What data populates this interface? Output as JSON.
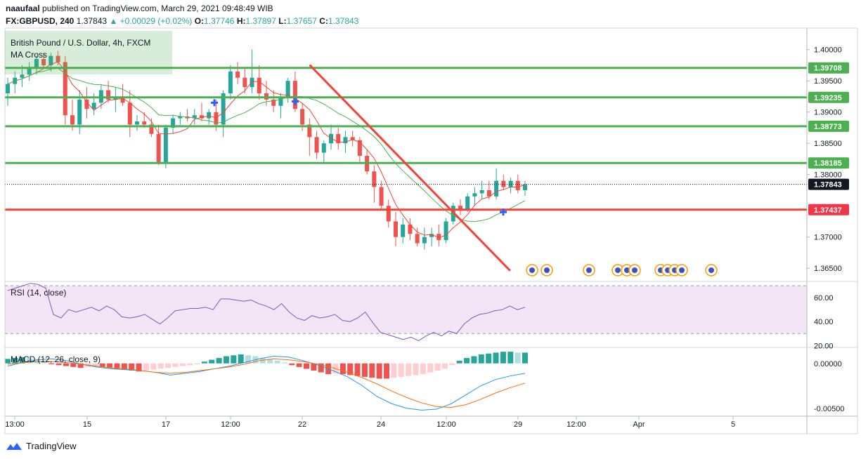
{
  "header": {
    "author": "naaufaal",
    "published": "published on TradingView.com, March 29, 2021 09:48:49 WIB",
    "symbol": "FX:GBPUSD, 240",
    "last": "1.37843",
    "change": "▲ +0.00029 (+0.02%)",
    "o_label": "O:",
    "o": "1.37746",
    "h_label": "H:",
    "h": "1.37897",
    "l_label": "L:",
    "l": "1.37657",
    "c_label": "C:",
    "c": "1.37843"
  },
  "footer": {
    "brand": "TradingView"
  },
  "colors": {
    "up": "#26a69a",
    "down": "#ef5350",
    "support": "#4caf50",
    "resistance": "#f44336",
    "ma_fast": "#f44336",
    "ma_slow": "#4caf50",
    "rsi": "#7e57c2",
    "rsi_band": "#f3e5f5",
    "macd": "#2196f3",
    "signal": "#ff6d00",
    "label_green": "#4caf50",
    "label_red": "#f23645",
    "price_label": "#131722"
  },
  "chart_data": [
    {
      "type": "candlestick",
      "title": "British Pound / U.S. Dollar, 4h, FXCM",
      "indicator": "MA Cross",
      "ylim": [
        1.363,
        1.403
      ],
      "y_ticks": [
        "1.40000",
        "1.39500",
        "1.39000",
        "1.38500",
        "1.38000",
        "1.37000",
        "1.36500"
      ],
      "x_ticks": [
        "13:00",
        "15",
        "17",
        "12:00",
        "22",
        "24",
        "12:00",
        "29",
        "12:00",
        "Apr",
        "5"
      ],
      "price_labels": [
        "1.39708",
        "1.39235",
        "1.38773",
        "1.38185",
        "1.37843",
        "1.37437"
      ],
      "horizontal_levels": [
        {
          "value": 1.39708,
          "kind": "support"
        },
        {
          "value": 1.39235,
          "kind": "support"
        },
        {
          "value": 1.38773,
          "kind": "support"
        },
        {
          "value": 1.38185,
          "kind": "support"
        },
        {
          "value": 1.37437,
          "kind": "resistance"
        }
      ],
      "current_price": 1.37843,
      "trendline": {
        "from": [
          1.39755,
          0.38
        ],
        "to": [
          1.3646,
          0.63
        ]
      },
      "candles": [
        [
          1.393,
          1.3955,
          1.391,
          1.3945
        ],
        [
          1.3945,
          1.3965,
          1.393,
          1.3955
        ],
        [
          1.3955,
          1.3975,
          1.394,
          1.396
        ],
        [
          1.396,
          1.398,
          1.395,
          1.3972
        ],
        [
          1.3972,
          1.399,
          1.396,
          1.3985
        ],
        [
          1.3985,
          1.3995,
          1.397,
          1.3975
        ],
        [
          1.3975,
          1.3995,
          1.3965,
          1.399
        ],
        [
          1.399,
          1.3998,
          1.3975,
          1.398
        ],
        [
          1.398,
          1.399,
          1.388,
          1.3895
        ],
        [
          1.3895,
          1.392,
          1.387,
          1.388
        ],
        [
          1.388,
          1.3935,
          1.3865,
          1.392
        ],
        [
          1.392,
          1.394,
          1.389,
          1.3905
        ],
        [
          1.3905,
          1.393,
          1.3895,
          1.3915
        ],
        [
          1.3915,
          1.3945,
          1.3905,
          1.3935
        ],
        [
          1.3935,
          1.395,
          1.3915,
          1.392
        ],
        [
          1.392,
          1.394,
          1.39,
          1.3925
        ],
        [
          1.3925,
          1.3945,
          1.391,
          1.3915
        ],
        [
          1.3915,
          1.3935,
          1.386,
          1.388
        ],
        [
          1.388,
          1.3895,
          1.387,
          1.3885
        ],
        [
          1.3885,
          1.39,
          1.3875,
          1.388
        ],
        [
          1.388,
          1.389,
          1.386,
          1.3865
        ],
        [
          1.3865,
          1.388,
          1.3815,
          1.382
        ],
        [
          1.382,
          1.388,
          1.381,
          1.3875
        ],
        [
          1.3875,
          1.3895,
          1.3865,
          1.389
        ],
        [
          1.389,
          1.39,
          1.388,
          1.3893
        ],
        [
          1.3893,
          1.3905,
          1.3885,
          1.389
        ],
        [
          1.389,
          1.3905,
          1.388,
          1.3895
        ],
        [
          1.3895,
          1.3915,
          1.3885,
          1.389
        ],
        [
          1.389,
          1.3905,
          1.388,
          1.39
        ],
        [
          1.39,
          1.392,
          1.387,
          1.388
        ],
        [
          1.388,
          1.3935,
          1.386,
          1.393
        ],
        [
          1.393,
          1.3975,
          1.392,
          1.3965
        ],
        [
          1.3965,
          1.398,
          1.3945,
          1.3955
        ],
        [
          1.3955,
          1.397,
          1.393,
          1.394
        ],
        [
          1.394,
          1.4,
          1.393,
          1.3955
        ],
        [
          1.3955,
          1.3975,
          1.392,
          1.393
        ],
        [
          1.393,
          1.395,
          1.391,
          1.392
        ],
        [
          1.392,
          1.3935,
          1.39,
          1.391
        ],
        [
          1.391,
          1.393,
          1.389,
          1.3925
        ],
        [
          1.3925,
          1.3955,
          1.3915,
          1.395
        ],
        [
          1.395,
          1.3965,
          1.39,
          1.3905
        ],
        [
          1.3905,
          1.3915,
          1.387,
          1.388
        ],
        [
          1.388,
          1.389,
          1.383,
          1.386
        ],
        [
          1.386,
          1.387,
          1.3825,
          1.3835
        ],
        [
          1.3835,
          1.3855,
          1.382,
          1.385
        ],
        [
          1.385,
          1.388,
          1.384,
          1.3865
        ],
        [
          1.3865,
          1.3875,
          1.384,
          1.385
        ],
        [
          1.385,
          1.387,
          1.3835,
          1.386
        ],
        [
          1.386,
          1.387,
          1.3845,
          1.3855
        ],
        [
          1.3855,
          1.386,
          1.382,
          1.383
        ],
        [
          1.383,
          1.384,
          1.38,
          1.3805
        ],
        [
          1.3805,
          1.3815,
          1.3755,
          1.378
        ],
        [
          1.378,
          1.379,
          1.3745,
          1.375
        ],
        [
          1.375,
          1.376,
          1.3715,
          1.3725
        ],
        [
          1.3725,
          1.374,
          1.3685,
          1.37
        ],
        [
          1.37,
          1.373,
          1.369,
          1.372
        ],
        [
          1.372,
          1.373,
          1.3695,
          1.3705
        ],
        [
          1.3705,
          1.3715,
          1.3685,
          1.369
        ],
        [
          1.369,
          1.3715,
          1.368,
          1.37
        ],
        [
          1.37,
          1.3715,
          1.3685,
          1.3705
        ],
        [
          1.3705,
          1.372,
          1.3685,
          1.3695
        ],
        [
          1.3695,
          1.373,
          1.369,
          1.3725
        ],
        [
          1.3725,
          1.3755,
          1.372,
          1.375
        ],
        [
          1.375,
          1.376,
          1.3735,
          1.3745
        ],
        [
          1.3745,
          1.377,
          1.374,
          1.3765
        ],
        [
          1.3765,
          1.378,
          1.375,
          1.377
        ],
        [
          1.377,
          1.379,
          1.376,
          1.3775
        ],
        [
          1.3775,
          1.379,
          1.376,
          1.3765
        ],
        [
          1.3765,
          1.381,
          1.376,
          1.379
        ],
        [
          1.379,
          1.38,
          1.3775,
          1.378
        ],
        [
          1.378,
          1.3795,
          1.377,
          1.379
        ],
        [
          1.379,
          1.38,
          1.377,
          1.3775
        ],
        [
          1.3775,
          1.379,
          1.3766,
          1.3784
        ]
      ]
    },
    {
      "type": "line",
      "title": "RSI (14, close)",
      "ylim": [
        19,
        73
      ],
      "y_ticks": [
        "60.00",
        "40.00",
        "20.00"
      ],
      "bands": [
        30,
        70
      ],
      "values": [
        66,
        68,
        70,
        72,
        71,
        68,
        46,
        43,
        50,
        48,
        50,
        52,
        49,
        53,
        50,
        44,
        43,
        44,
        46,
        42,
        38,
        43,
        49,
        50,
        51,
        51,
        52,
        50,
        59,
        59,
        58,
        57,
        58,
        55,
        53,
        50,
        55,
        48,
        43,
        41,
        45,
        43,
        44,
        46,
        41,
        40,
        43,
        48,
        39,
        31,
        29,
        27,
        25,
        27,
        24,
        28,
        31,
        28,
        32,
        30,
        38,
        43,
        46,
        47,
        49,
        50,
        53,
        50,
        52
      ]
    },
    {
      "type": "bar+line",
      "title": "MACD (12, 26, close, 9)",
      "ylim": [
        -0.0058,
        0.0017
      ],
      "y_ticks": [
        "0.00000",
        "-0.00500"
      ],
      "histogram": [
        0.0005,
        0.0006,
        0.0007,
        0.0006,
        0.0004,
        0.0002,
        -0.0001,
        -0.0002,
        -0.0003,
        -0.0004,
        -0.0005,
        -0.0004,
        -0.0003,
        -0.0004,
        -0.0005,
        -0.0006,
        -0.0007,
        -0.0008,
        -0.0009,
        -0.0008,
        -0.0007,
        -0.0006,
        -0.0005,
        -0.0004,
        -0.0003,
        -0.0002,
        -0.0001,
        0.0002,
        0.0004,
        0.0006,
        0.0008,
        0.0009,
        0.001,
        0.0009,
        0.0008,
        0.0006,
        0.0005,
        0.0003,
        0.0001,
        -0.0002,
        -0.0004,
        -0.0006,
        -0.0008,
        -0.001,
        -0.0012,
        -0.0011,
        -0.0012,
        -0.0013,
        -0.0014,
        -0.0015,
        -0.0016,
        -0.0017,
        -0.0017,
        -0.0016,
        -0.0015,
        -0.0014,
        -0.0013,
        -0.0012,
        -0.001,
        -0.0008,
        -0.0006,
        -0.0002,
        0.0003,
        0.0006,
        0.0008,
        0.001,
        0.0011,
        0.0012,
        0.0013,
        0.0013,
        0.0012,
        0.0012
      ],
      "macd": [
        -0.0003,
        0.0001,
        0.0004,
        0.0005,
        0.0003,
        -0.0001,
        -0.0004,
        -0.0006,
        -0.0007,
        -0.0008,
        -0.001,
        -0.0013,
        -0.0011,
        -0.0009,
        -0.0006,
        -0.0003,
        0.0001,
        0.0005,
        0.0008,
        0.0007,
        0.0003,
        -0.0002,
        -0.0008,
        -0.0015,
        -0.0025,
        -0.0037,
        -0.0045,
        -0.005,
        -0.0052,
        -0.0051,
        -0.0045,
        -0.0035,
        -0.0025,
        -0.0018,
        -0.0014,
        -0.0011
      ],
      "signal": [
        -0.0001,
        0.0001,
        0.0002,
        0.0002,
        0.0001,
        -0.0001,
        -0.0003,
        -0.0005,
        -0.0006,
        -0.0008,
        -0.001,
        -0.0011,
        -0.001,
        -0.0008,
        -0.0006,
        -0.0004,
        -0.0001,
        0.0003,
        0.0005,
        0.0004,
        0.0002,
        -0.0001,
        -0.0005,
        -0.001,
        -0.0016,
        -0.0023,
        -0.0031,
        -0.0038,
        -0.0044,
        -0.0048,
        -0.0049,
        -0.0046,
        -0.004,
        -0.0033,
        -0.0027,
        -0.0022
      ]
    }
  ]
}
